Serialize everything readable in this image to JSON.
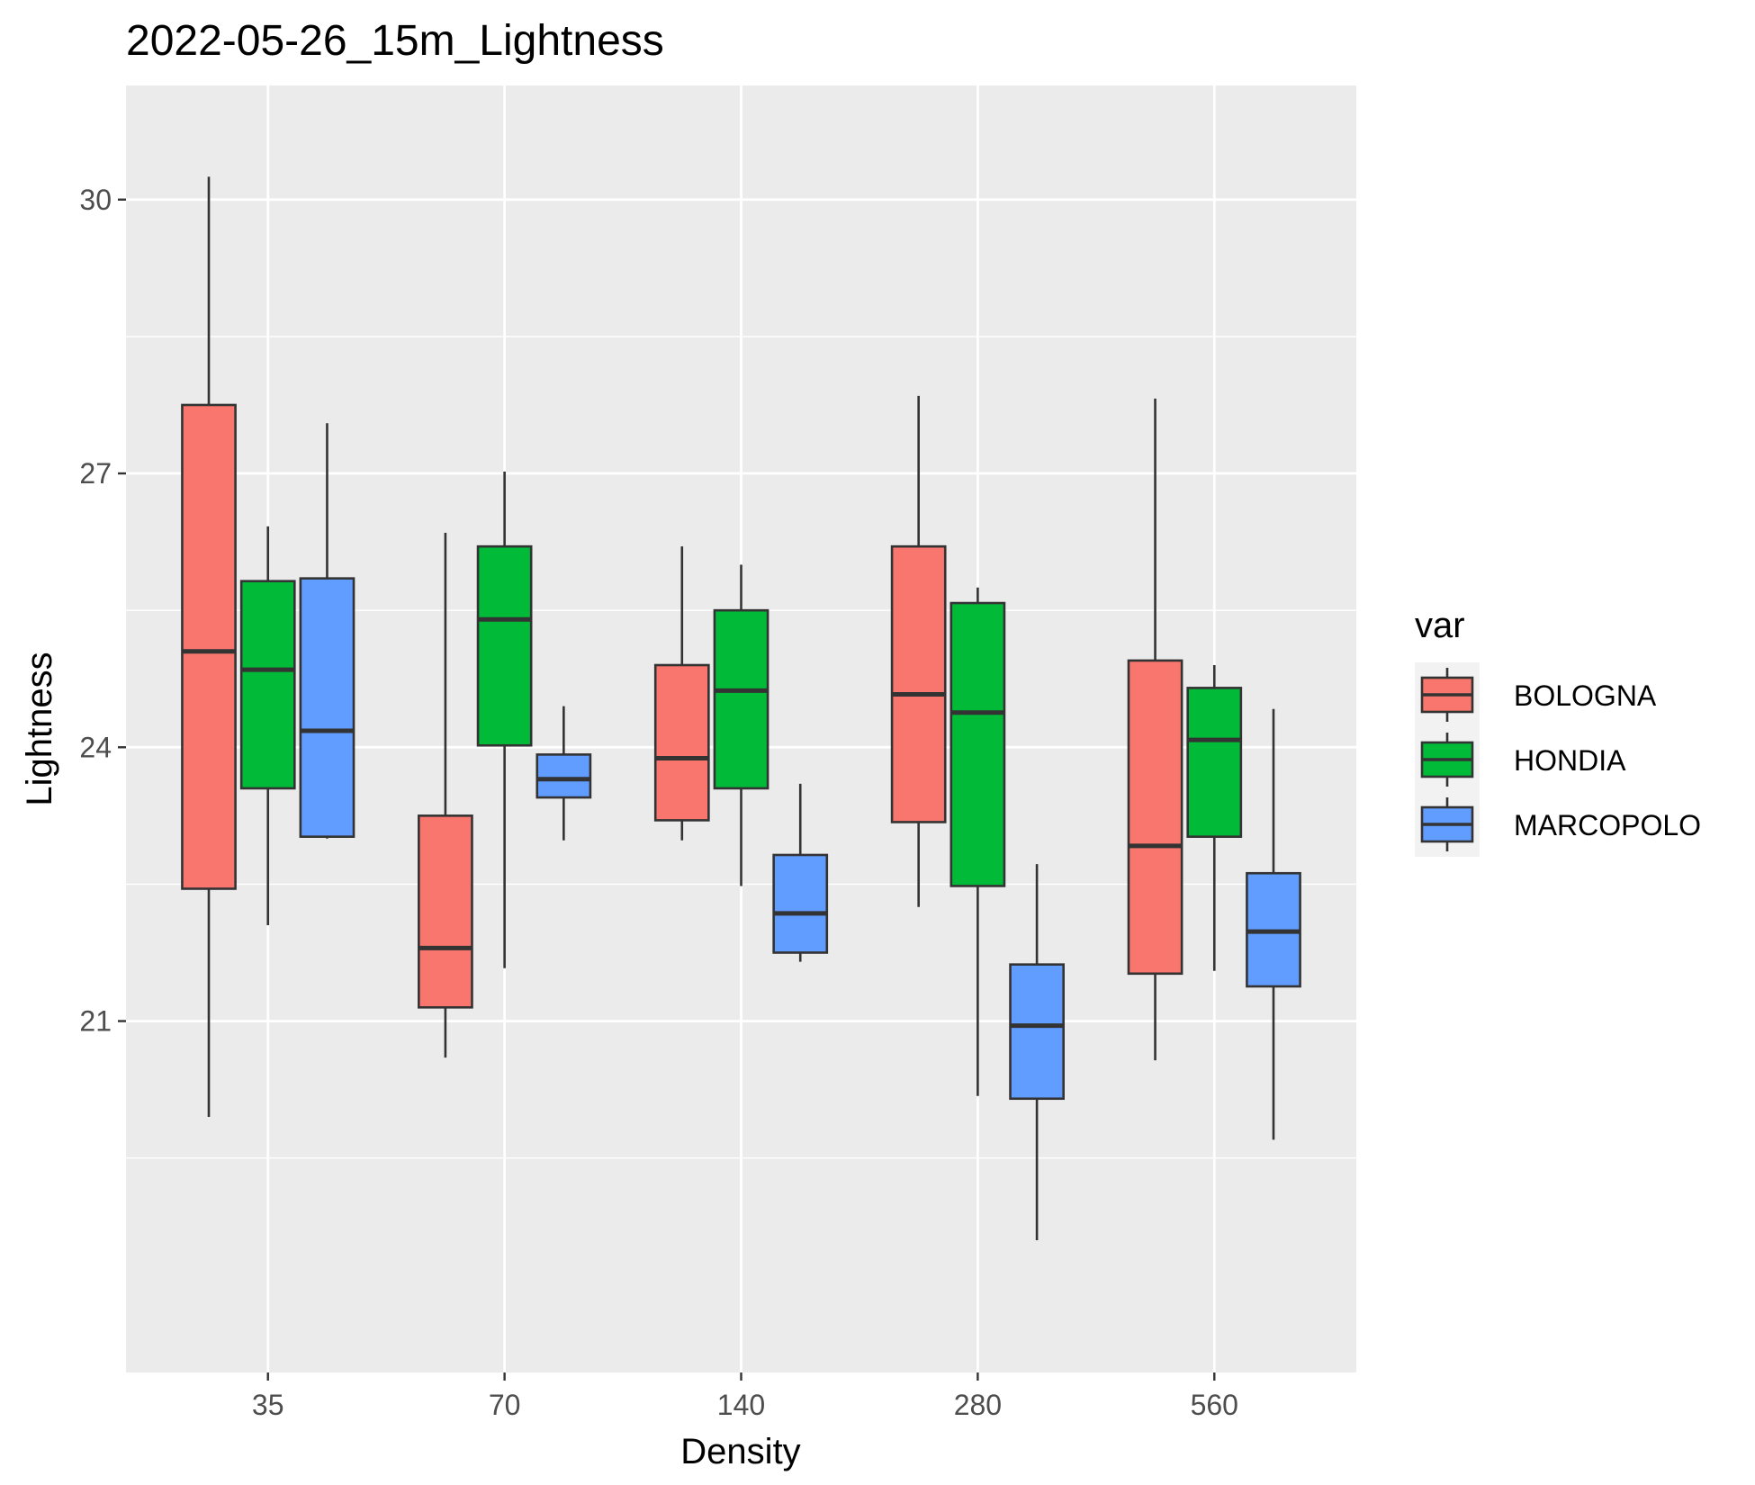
{
  "chart_data": {
    "type": "box",
    "title": "2022-05-26_15m_Lightness",
    "xlabel": "Density",
    "ylabel": "Lightness",
    "categories": [
      "35",
      "70",
      "140",
      "280",
      "560"
    ],
    "y_ticks": [
      21,
      24,
      27,
      30
    ],
    "y_tick_labels": [
      "21",
      "24",
      "27",
      "30"
    ],
    "ylim": [
      17.15,
      31.25
    ],
    "grid": true,
    "legend": {
      "title": "var",
      "position": "right"
    },
    "series": [
      {
        "name": "BOLOGNA",
        "color": "#F8766D",
        "boxes": [
          {
            "category": "35",
            "min": 19.95,
            "q1": 22.45,
            "median": 25.05,
            "q3": 27.75,
            "max": 30.25
          },
          {
            "category": "70",
            "min": 20.6,
            "q1": 21.15,
            "median": 21.8,
            "q3": 23.25,
            "max": 26.35
          },
          {
            "category": "140",
            "min": 22.98,
            "q1": 23.2,
            "median": 23.88,
            "q3": 24.9,
            "max": 26.2
          },
          {
            "category": "280",
            "min": 22.25,
            "q1": 23.18,
            "median": 24.58,
            "q3": 26.2,
            "max": 27.85
          },
          {
            "category": "560",
            "min": 20.57,
            "q1": 21.52,
            "median": 22.92,
            "q3": 24.95,
            "max": 27.82
          }
        ]
      },
      {
        "name": "HONDIA",
        "color": "#00BA38",
        "boxes": [
          {
            "category": "35",
            "min": 22.05,
            "q1": 23.55,
            "median": 24.85,
            "q3": 25.82,
            "max": 26.42
          },
          {
            "category": "70",
            "min": 21.58,
            "q1": 24.02,
            "median": 25.4,
            "q3": 26.2,
            "max": 27.02
          },
          {
            "category": "140",
            "min": 22.48,
            "q1": 23.55,
            "median": 24.62,
            "q3": 25.5,
            "max": 26.0
          },
          {
            "category": "280",
            "min": 20.18,
            "q1": 22.48,
            "median": 24.38,
            "q3": 25.58,
            "max": 25.75
          },
          {
            "category": "560",
            "min": 21.55,
            "q1": 23.02,
            "median": 24.08,
            "q3": 24.65,
            "max": 24.9
          }
        ]
      },
      {
        "name": "MARCOPOLO",
        "color": "#619CFF",
        "boxes": [
          {
            "category": "35",
            "min": 23.0,
            "q1": 23.02,
            "median": 24.18,
            "q3": 25.85,
            "max": 27.55
          },
          {
            "category": "70",
            "min": 22.98,
            "q1": 23.45,
            "median": 23.65,
            "q3": 23.92,
            "max": 24.45
          },
          {
            "category": "140",
            "min": 21.65,
            "q1": 21.75,
            "median": 22.18,
            "q3": 22.82,
            "max": 23.6
          },
          {
            "category": "280",
            "min": 18.6,
            "q1": 20.15,
            "median": 20.95,
            "q3": 21.62,
            "max": 22.72
          },
          {
            "category": "560",
            "min": 19.7,
            "q1": 21.38,
            "median": 21.98,
            "q3": 22.62,
            "max": 24.42
          }
        ]
      }
    ]
  }
}
